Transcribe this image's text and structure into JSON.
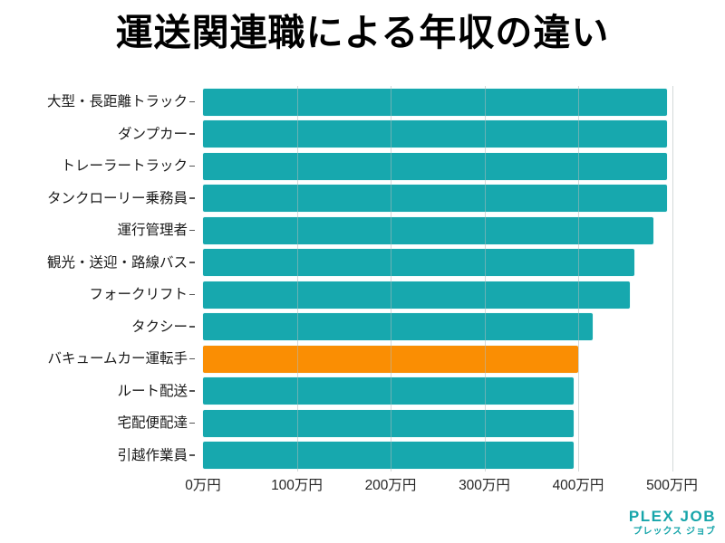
{
  "title": "運送関連職による年収の違い",
  "chart_data": {
    "type": "bar",
    "orientation": "horizontal",
    "title": "運送関連職による年収の違い",
    "unit": "万円",
    "categories": [
      "大型・長距離トラック",
      "ダンプカー",
      "トレーラートラック",
      "タンクローリー乗務員",
      "運行管理者",
      "観光・送迎・路線バス",
      "フォークリフト",
      "タクシー",
      "バキュームカー運転手",
      "ルート配送",
      "宅配便配達",
      "引越作業員"
    ],
    "values": [
      495,
      495,
      495,
      495,
      480,
      460,
      455,
      415,
      400,
      395,
      395,
      395
    ],
    "highlight_index": 8,
    "highlight_category": "バキュームカー運転手",
    "x_ticks": [
      "0万円",
      "100万円",
      "200万円",
      "300万円",
      "400万円",
      "500万円"
    ],
    "x_tick_values": [
      0,
      100,
      200,
      300,
      400,
      500
    ],
    "xlim": [
      0,
      500
    ],
    "grid": true,
    "legend": false,
    "colors": {
      "bar": "#17A8AE",
      "highlight": "#FA8E03",
      "grid": "#AFB9BA",
      "title": "#000000",
      "axis_text": "#262626"
    }
  },
  "footer": {
    "logo_text": "PLEX JOB",
    "logo_subtext": "プレックス ジョブ",
    "logo_color": "#16A5AA"
  }
}
